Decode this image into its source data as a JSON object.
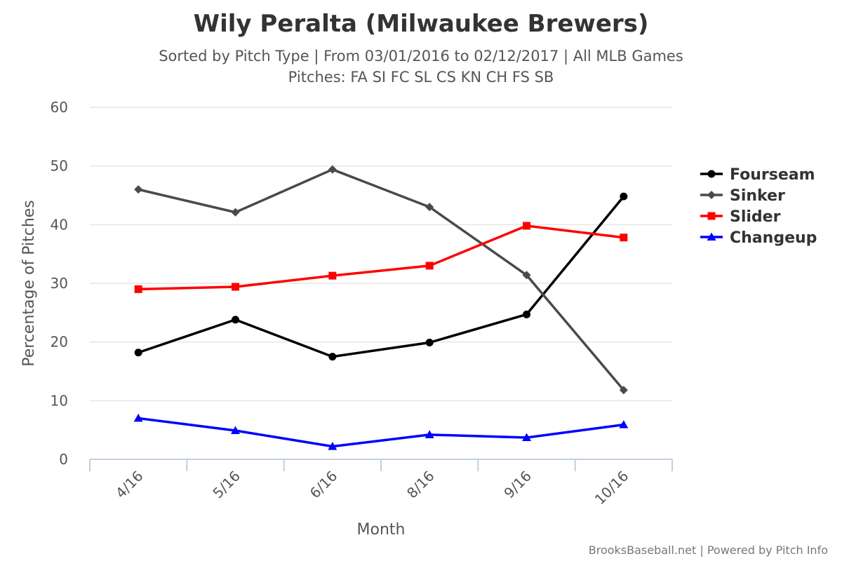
{
  "chart_data": {
    "type": "line",
    "title": "Wily Peralta (Milwaukee Brewers)",
    "subtitle_lines": [
      "Sorted by Pitch Type | From 03/01/2016 to 02/12/2017 | All MLB Games",
      "Pitches: FA SI FC SL CS KN CH FS SB"
    ],
    "xlabel": "Month",
    "ylabel": "Percentage of Pitches",
    "categories": [
      "4/16",
      "5/16",
      "6/16",
      "8/16",
      "9/16",
      "10/16"
    ],
    "ylim": [
      0,
      60
    ],
    "yticks": [
      0,
      10,
      20,
      30,
      40,
      50,
      60
    ],
    "grid": true,
    "legend_position": "right",
    "series": [
      {
        "name": "Fourseam",
        "color": "#000000",
        "marker": "circle",
        "values": [
          18.2,
          23.8,
          17.5,
          19.9,
          24.7,
          44.8
        ]
      },
      {
        "name": "Sinker",
        "color": "#4a4a4a",
        "marker": "diamond",
        "values": [
          46.0,
          42.1,
          49.4,
          43.0,
          31.4,
          11.8
        ]
      },
      {
        "name": "Slider",
        "color": "#ff0000",
        "marker": "square",
        "values": [
          29.0,
          29.4,
          31.3,
          33.0,
          39.8,
          37.8
        ]
      },
      {
        "name": "Changeup",
        "color": "#0000ff",
        "marker": "triangle",
        "values": [
          7.0,
          4.9,
          2.2,
          4.2,
          3.7,
          5.9
        ]
      }
    ],
    "credits": "BrooksBaseball.net | Powered by Pitch Info"
  }
}
